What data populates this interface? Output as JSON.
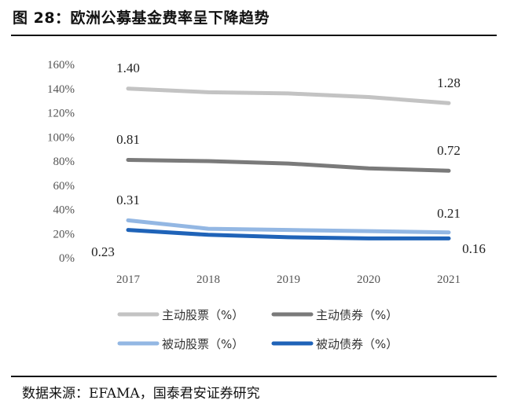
{
  "title": "图 28：欧洲公募基金费率呈下降趋势",
  "source": "数据来源：EFAMA，国泰君安证券研究",
  "chart_data": {
    "type": "line",
    "categories": [
      "2017",
      "2018",
      "2019",
      "2020",
      "2021"
    ],
    "ylim": [
      0,
      160
    ],
    "yticks": [
      "0%",
      "20%",
      "40%",
      "60%",
      "80%",
      "100%",
      "120%",
      "140%",
      "160%"
    ],
    "series": [
      {
        "name": "主动股票（%）",
        "values": [
          1.4,
          1.37,
          1.36,
          1.33,
          1.28
        ],
        "color": "#c3c3c3",
        "labels": {
          "first": "1.40",
          "last": "1.28"
        }
      },
      {
        "name": "主动债券（%）",
        "values": [
          0.81,
          0.8,
          0.78,
          0.74,
          0.72
        ],
        "color": "#7a7a7a",
        "labels": {
          "first": "0.81",
          "last": "0.72"
        }
      },
      {
        "name": "被动股票（%）",
        "values": [
          0.31,
          0.24,
          0.23,
          0.22,
          0.21
        ],
        "color": "#93b7e3",
        "labels": {
          "first": "0.31",
          "last": "0.21"
        }
      },
      {
        "name": "被动债券（%）",
        "values": [
          0.23,
          0.19,
          0.17,
          0.16,
          0.16
        ],
        "color": "#1f63b8",
        "labels": {
          "first": "0.23",
          "last": "0.16"
        }
      }
    ]
  }
}
